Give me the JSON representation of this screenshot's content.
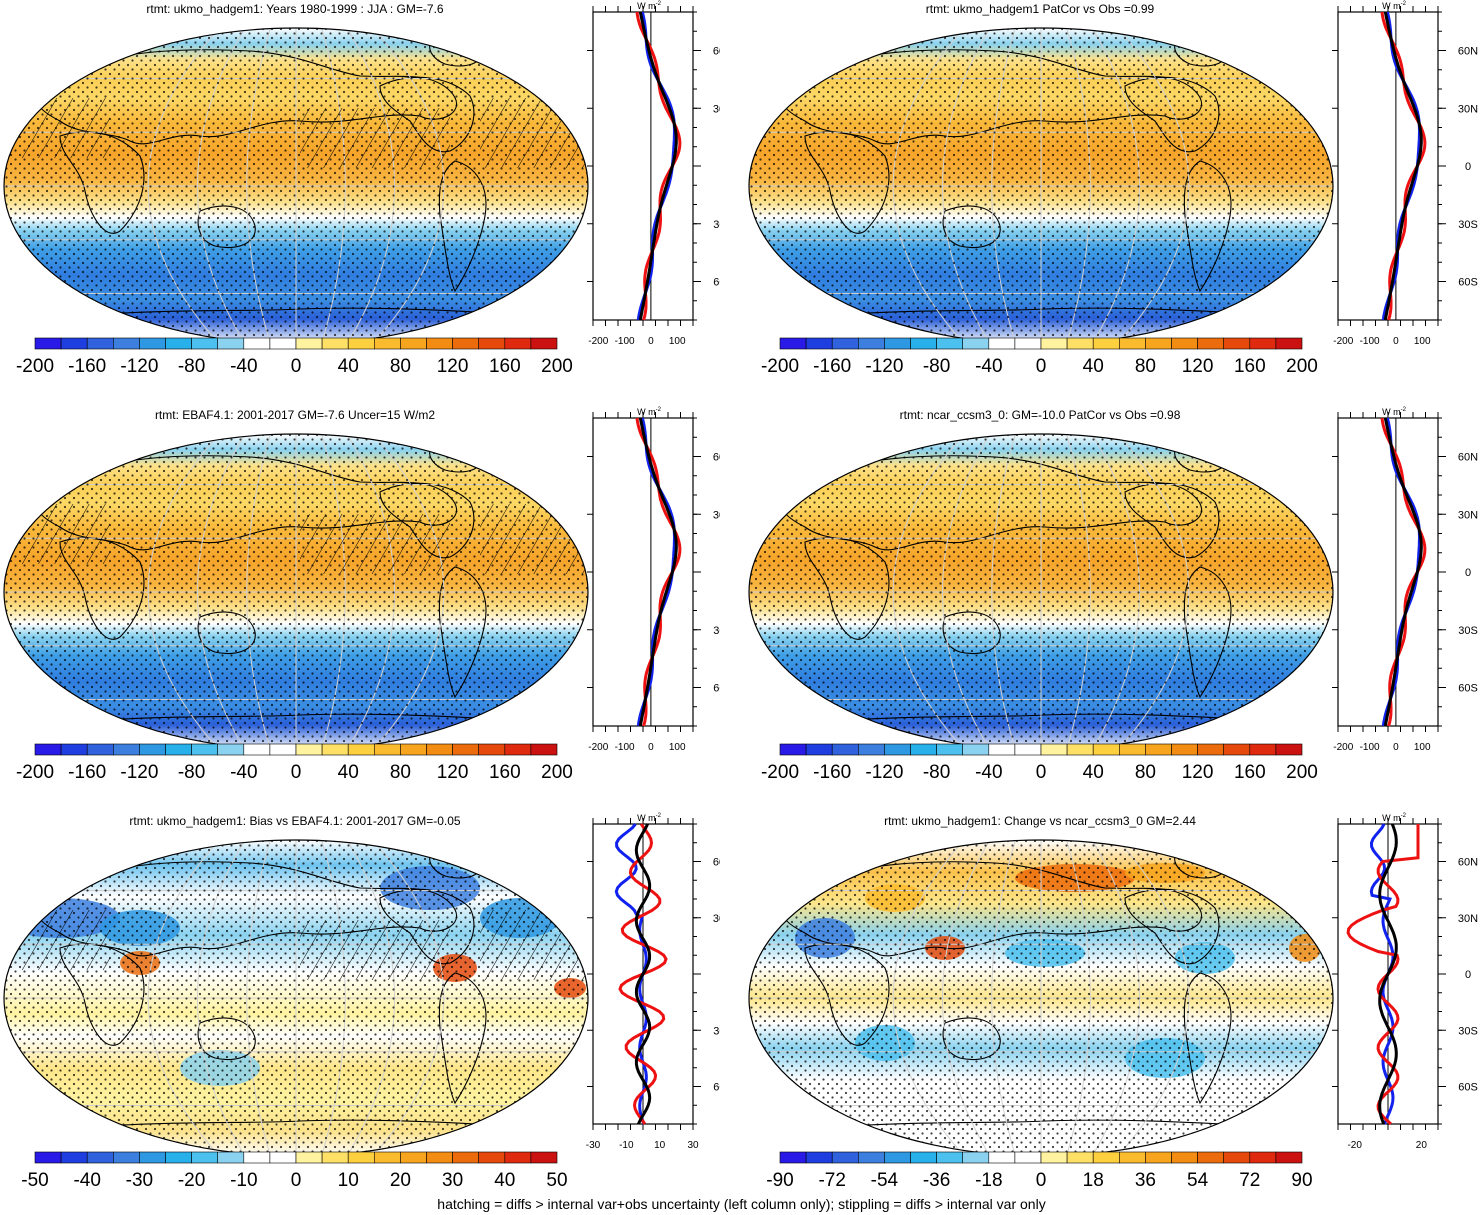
{
  "footnote": "hatching = diffs > internal var+obs uncertainty (left column only); stippling = diffs > internal var only",
  "profile_unit": "W m",
  "profile_unit_sup": "-2",
  "lat_ticks": [
    "60N",
    "30N",
    "0",
    "30S",
    "60S"
  ],
  "colors": {
    "observed": "#000000",
    "model_a": "#ee1111",
    "model_b": "#1122ee",
    "land_outline": "#000000",
    "graticule": "#cfcfcf"
  },
  "panels": [
    {
      "id": "panel-1",
      "title": "rtmt: ukmo_hadgem1: Years 1980-1999 : JJA : GM=-7.6",
      "map_type": "mean",
      "hatching": true,
      "colorbar_labels": [
        "-200",
        "-160",
        "-120",
        "-80",
        "-40",
        "0",
        "40",
        "80",
        "120",
        "160",
        "200"
      ],
      "profile_ticks": [
        "-200",
        "-100",
        "0",
        "100"
      ],
      "profile_range": [
        -220,
        160
      ]
    },
    {
      "id": "panel-2",
      "title": "rtmt: ukmo_hadgem1 PatCor vs Obs =0.99",
      "map_type": "mean",
      "hatching": false,
      "colorbar_labels": [
        "-200",
        "-160",
        "-120",
        "-80",
        "-40",
        "0",
        "40",
        "80",
        "120",
        "160",
        "200"
      ],
      "profile_ticks": [
        "-200",
        "-100",
        "0",
        "100"
      ],
      "profile_range": [
        -220,
        160
      ]
    },
    {
      "id": "panel-3",
      "title": "rtmt: EBAF4.1: 2001-2017 GM=-7.6 Uncer=15 W/m2",
      "map_type": "mean",
      "hatching": true,
      "colorbar_labels": [
        "-200",
        "-160",
        "-120",
        "-80",
        "-40",
        "0",
        "40",
        "80",
        "120",
        "160",
        "200"
      ],
      "profile_ticks": [
        "-200",
        "-100",
        "0",
        "100"
      ],
      "profile_range": [
        -220,
        160
      ]
    },
    {
      "id": "panel-4",
      "title": "rtmt: ncar_ccsm3_0: GM=-10.0 PatCor vs Obs =0.98",
      "map_type": "mean",
      "hatching": false,
      "colorbar_labels": [
        "-200",
        "-160",
        "-120",
        "-80",
        "-40",
        "0",
        "40",
        "80",
        "120",
        "160",
        "200"
      ],
      "profile_ticks": [
        "-200",
        "-100",
        "0",
        "100"
      ],
      "profile_range": [
        -220,
        160
      ]
    },
    {
      "id": "panel-5",
      "title": "rtmt: ukmo_hadgem1: Bias vs EBAF4.1: 2001-2017 GM=-0.05",
      "map_type": "bias",
      "hatching": true,
      "colorbar_labels": [
        "-50",
        "-40",
        "-30",
        "-20",
        "-10",
        "0",
        "10",
        "20",
        "30",
        "40",
        "50"
      ],
      "profile_ticks": [
        "-30",
        "-10",
        "10",
        "30"
      ],
      "profile_range": [
        -30,
        30
      ]
    },
    {
      "id": "panel-6",
      "title": "rtmt: ukmo_hadgem1: Change vs ncar_ccsm3_0 GM=2.44",
      "map_type": "change",
      "hatching": false,
      "colorbar_labels": [
        "-90",
        "-72",
        "-54",
        "-36",
        "-18",
        "0",
        "18",
        "36",
        "54",
        "72",
        "90"
      ],
      "profile_ticks": [
        "-20",
        "20"
      ],
      "profile_range": [
        -30,
        30
      ]
    }
  ],
  "colorbar_colors": [
    "#2a1ae8",
    "#1f3ee0",
    "#2f62dc",
    "#3d7fdf",
    "#2e98e2",
    "#27b0ea",
    "#4cc1ef",
    "#8ad2ef",
    "#ffffff",
    "#ffffff",
    "#fff3a0",
    "#ffe066",
    "#fdd040",
    "#fbbb2e",
    "#f7a51f",
    "#f28c12",
    "#ec6c0d",
    "#e54a0c",
    "#df2a0f",
    "#cc1111"
  ]
}
